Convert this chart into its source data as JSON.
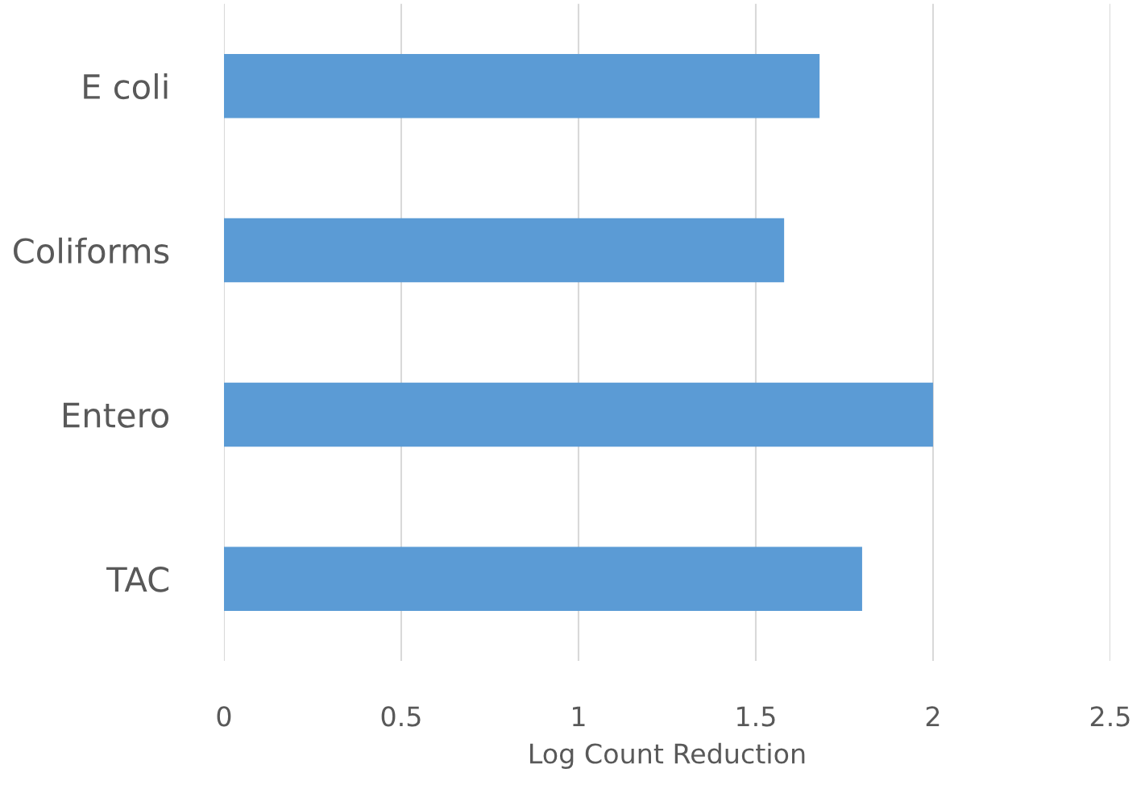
{
  "chart_data": {
    "type": "bar",
    "orientation": "horizontal",
    "xlabel": "Log Count Reduction",
    "categories": [
      "E coli",
      "Coliforms",
      "Entero",
      "TAC"
    ],
    "values": [
      1.68,
      1.58,
      2.0,
      1.8
    ],
    "color": "#5b9bd5",
    "xlim": [
      0,
      2.5
    ],
    "xticks": [
      0,
      0.5,
      1,
      1.5,
      2,
      2.5
    ],
    "grid": "x"
  }
}
